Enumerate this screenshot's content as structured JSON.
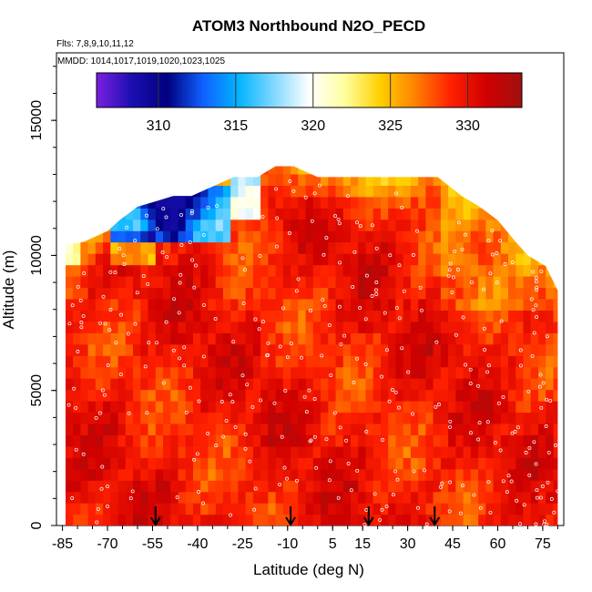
{
  "chart_data": {
    "type": "heatmap",
    "title": "ATOM3 Northbound N2O_PECD",
    "flights_note": "Flts: 7,8,9,10,11,12",
    "dates_note": "MMDD: 1014,1017,1019,1020,1023,1025",
    "xlabel": "Latitude (deg N)",
    "ylabel": "Altitude (m)",
    "xlim": [
      -87,
      82
    ],
    "ylim": [
      0,
      17500
    ],
    "x_ticks": [
      "-85",
      "-70",
      "-55",
      "-40",
      "-25",
      "-10",
      "5",
      "15",
      "30",
      "45",
      "60",
      "75"
    ],
    "y_ticks": [
      "0",
      "5000",
      "10000",
      "15000"
    ],
    "colorbar": {
      "range": [
        306,
        333.5
      ],
      "ticks": [
        "310",
        "315",
        "320",
        "325",
        "330"
      ],
      "colors": [
        "#7a1fe0",
        "#1a0fb0",
        "#000080",
        "#1060ff",
        "#00b4ff",
        "#80d8ff",
        "#ffffff",
        "#ffffa0",
        "#ffd000",
        "#ff8000",
        "#ff2000",
        "#d00000",
        "#a01010"
      ]
    },
    "arrows_latitude": [
      -54,
      -9,
      17,
      39
    ],
    "data_summary": {
      "typical_value": 329.5,
      "max_value": 333,
      "min_value": 309,
      "low_values_region": "upper-left near 11000-12000 m, latitudes -65 to -30"
    },
    "outline": {
      "top_altitude_by_latitude": [
        [
          -84,
          10400
        ],
        [
          -78,
          10500
        ],
        [
          -70,
          10900
        ],
        [
          -66,
          11300
        ],
        [
          -60,
          11800
        ],
        [
          -54,
          12000
        ],
        [
          -48,
          12200
        ],
        [
          -42,
          12200
        ],
        [
          -36,
          12500
        ],
        [
          -28,
          12900
        ],
        [
          -20,
          12900
        ],
        [
          -14,
          13300
        ],
        [
          -8,
          13300
        ],
        [
          0,
          12900
        ],
        [
          10,
          12900
        ],
        [
          20,
          12900
        ],
        [
          30,
          12900
        ],
        [
          40,
          12900
        ],
        [
          48,
          12200
        ],
        [
          54,
          11800
        ],
        [
          60,
          11300
        ],
        [
          66,
          10500
        ],
        [
          70,
          10000
        ],
        [
          76,
          9600
        ],
        [
          80,
          8700
        ]
      ],
      "lat_min": -84,
      "lat_max": 80
    }
  }
}
